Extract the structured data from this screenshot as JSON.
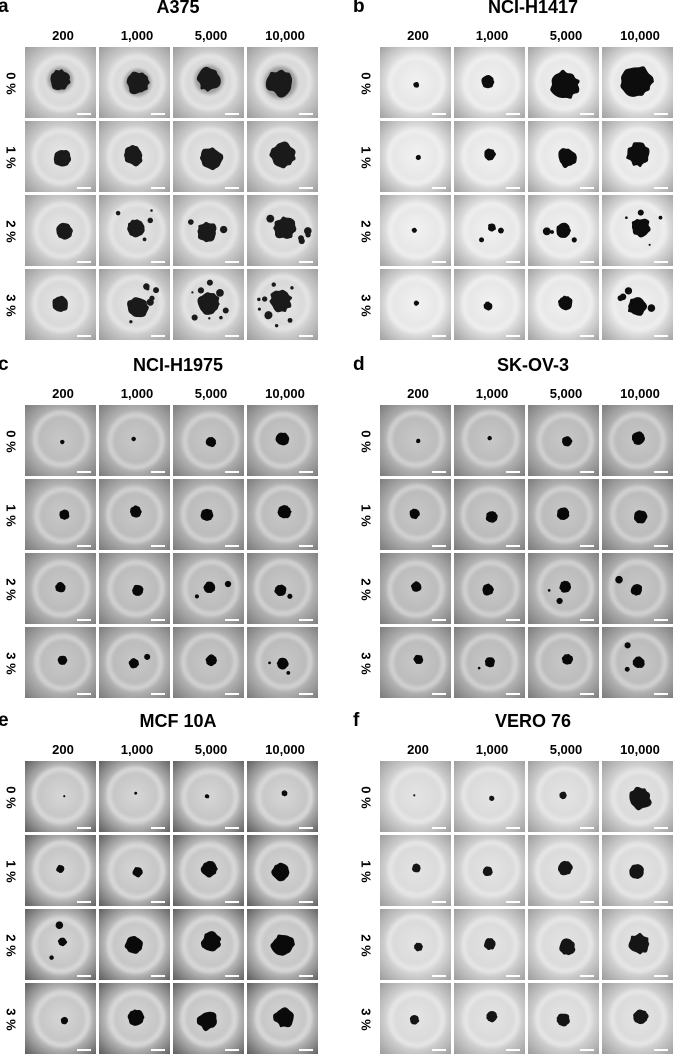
{
  "panels": [
    {
      "letter": "a",
      "title": "A375",
      "columns": [
        "200",
        "1,000",
        "5,000",
        "10,000"
      ],
      "rows": [
        "0 %",
        "1 %",
        "2 %",
        "3 %"
      ],
      "style": {
        "bg_center": "#e8e8e8",
        "bg_edge": "#9a9a9a",
        "ring": "#d4d4d4",
        "spheroid": "#1a1a1a"
      },
      "sizes": [
        [
          0.28,
          0.3,
          0.32,
          0.36
        ],
        [
          0.24,
          0.27,
          0.3,
          0.34
        ],
        [
          0.22,
          0.24,
          0.27,
          0.3
        ],
        [
          0.22,
          0.28,
          0.3,
          0.3
        ]
      ],
      "satellites": [
        [
          0,
          0,
          0,
          0
        ],
        [
          0,
          0,
          0,
          0
        ],
        [
          0,
          4,
          2,
          5
        ],
        [
          0,
          6,
          8,
          9
        ]
      ],
      "fuzzy_row": 0
    },
    {
      "letter": "b",
      "title": "NCI-H1417",
      "columns": [
        "200",
        "1,000",
        "5,000",
        "10,000"
      ],
      "rows": [
        "0 %",
        "1 %",
        "2 %",
        "3 %"
      ],
      "style": {
        "bg_center": "#f2f2f2",
        "bg_edge": "#a0a0a0",
        "ring": "#e4e4e4",
        "spheroid": "#0d0d0d"
      },
      "sizes": [
        [
          0.08,
          0.18,
          0.38,
          0.42
        ],
        [
          0.07,
          0.16,
          0.26,
          0.32
        ],
        [
          0.07,
          0.11,
          0.2,
          0.26
        ],
        [
          0.07,
          0.12,
          0.2,
          0.26
        ]
      ],
      "satellites": [
        [
          0,
          0,
          0,
          0
        ],
        [
          0,
          0,
          0,
          0
        ],
        [
          0,
          2,
          3,
          4
        ],
        [
          0,
          0,
          0,
          4
        ]
      ],
      "fuzzy_row": -1
    },
    {
      "letter": "c",
      "title": "NCI-H1975",
      "columns": [
        "200",
        "1,000",
        "5,000",
        "10,000"
      ],
      "rows": [
        "0 %",
        "1 %",
        "2 %",
        "3 %"
      ],
      "style": {
        "bg_center": "#c8c8c8",
        "bg_edge": "#7a7a7a",
        "ring": "#b8b8b8",
        "spheroid": "#080808"
      },
      "sizes": [
        [
          0.06,
          0.06,
          0.14,
          0.18
        ],
        [
          0.14,
          0.16,
          0.17,
          0.18
        ],
        [
          0.14,
          0.16,
          0.16,
          0.16
        ],
        [
          0.13,
          0.14,
          0.15,
          0.16
        ]
      ],
      "satellites": [
        [
          0,
          0,
          0,
          0
        ],
        [
          0,
          0,
          0,
          0
        ],
        [
          0,
          0,
          2,
          1
        ],
        [
          0,
          1,
          0,
          2
        ]
      ],
      "fuzzy_row": -1
    },
    {
      "letter": "d",
      "title": "SK-OV-3",
      "columns": [
        "200",
        "1,000",
        "5,000",
        "10,000"
      ],
      "rows": [
        "0 %",
        "1 %",
        "2 %",
        "3 %"
      ],
      "style": {
        "bg_center": "#c8c8c8",
        "bg_edge": "#7a7a7a",
        "ring": "#b8b8b8",
        "spheroid": "#080808"
      },
      "sizes": [
        [
          0.06,
          0.06,
          0.14,
          0.18
        ],
        [
          0.14,
          0.16,
          0.17,
          0.18
        ],
        [
          0.14,
          0.16,
          0.16,
          0.16
        ],
        [
          0.13,
          0.14,
          0.15,
          0.16
        ]
      ],
      "satellites": [
        [
          0,
          0,
          0,
          0
        ],
        [
          0,
          0,
          0,
          0
        ],
        [
          0,
          0,
          2,
          1
        ],
        [
          0,
          1,
          0,
          2
        ]
      ],
      "fuzzy_row": -1
    },
    {
      "letter": "e",
      "title": "MCF 10A",
      "columns": [
        "200",
        "1,000",
        "5,000",
        "10,000"
      ],
      "rows": [
        "0 %",
        "1 %",
        "2 %",
        "3 %"
      ],
      "style": {
        "bg_center": "#d6d6d6",
        "bg_edge": "#5c5c5c",
        "ring": "#c2c2c2",
        "spheroid": "#0a0a0a"
      },
      "sizes": [
        [
          0.03,
          0.04,
          0.06,
          0.08
        ],
        [
          0.11,
          0.14,
          0.22,
          0.24
        ],
        [
          0.12,
          0.24,
          0.26,
          0.3
        ],
        [
          0.1,
          0.22,
          0.26,
          0.28
        ]
      ],
      "satellites": [
        [
          0,
          0,
          0,
          0
        ],
        [
          0,
          0,
          0,
          0
        ],
        [
          2,
          0,
          0,
          0
        ],
        [
          0,
          0,
          0,
          0
        ]
      ],
      "fuzzy_row": -1
    },
    {
      "letter": "f",
      "title": "VERO 76",
      "columns": [
        "200",
        "1,000",
        "5,000",
        "10,000"
      ],
      "rows": [
        "0 %",
        "1 %",
        "2 %",
        "3 %"
      ],
      "style": {
        "bg_center": "#e4e4e4",
        "bg_edge": "#9c9c9c",
        "ring": "#d8d8d8",
        "spheroid": "#151515"
      },
      "sizes": [
        [
          0.03,
          0.07,
          0.1,
          0.3
        ],
        [
          0.12,
          0.14,
          0.2,
          0.2
        ],
        [
          0.12,
          0.16,
          0.22,
          0.28
        ],
        [
          0.13,
          0.15,
          0.18,
          0.2
        ]
      ],
      "satellites": [
        [
          0,
          0,
          0,
          0
        ],
        [
          0,
          0,
          0,
          0
        ],
        [
          0,
          0,
          0,
          0
        ],
        [
          0,
          0,
          0,
          0
        ]
      ],
      "fuzzy_row": -1
    }
  ]
}
